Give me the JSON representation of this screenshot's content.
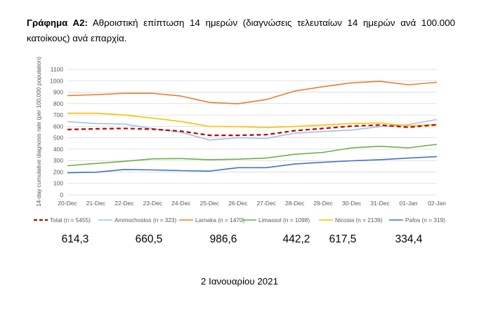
{
  "caption": {
    "label": "Γράφημα Α2:",
    "text": " Αθροιστική επίπτωση 14 ημερών (διαγνώσεις τελευταίων 14 ημερών ανά 100.000 κατοίκους) ανά επαρχία."
  },
  "chart_data": {
    "type": "line",
    "ylabel": "14-day cumulative diagnosis rate (per 100,000 population)",
    "xlabel": "",
    "ylim": [
      0,
      1100
    ],
    "yticks": [
      0,
      100,
      200,
      300,
      400,
      500,
      600,
      700,
      800,
      900,
      1000,
      1100
    ],
    "categories": [
      "20-Dec",
      "21-Dec",
      "22-Dec",
      "23-Dec",
      "24-Dec",
      "25-Dec",
      "26-Dec",
      "27-Dec",
      "28-Dec",
      "29-Dec",
      "30-Dec",
      "31-Dec",
      "01-Jan",
      "02-Jan"
    ],
    "grid": true,
    "legend_position": "bottom",
    "series": [
      {
        "name": "Total (n = 5455)",
        "color": "#c00000",
        "dashed": true,
        "values": [
          572,
          578,
          582,
          575,
          558,
          522,
          522,
          527,
          562,
          582,
          602,
          612,
          592,
          614.3
        ]
      },
      {
        "name": "Ammochostos (n = 323)",
        "color": "#9dc3e6",
        "dashed": false,
        "values": [
          642,
          625,
          620,
          580,
          548,
          480,
          500,
          495,
          540,
          555,
          568,
          598,
          615,
          660.5
        ]
      },
      {
        "name": "Larnaka (n = 1470)",
        "color": "#ed7d31",
        "dashed": false,
        "values": [
          870,
          878,
          890,
          890,
          866,
          810,
          798,
          835,
          910,
          948,
          982,
          995,
          965,
          986.6
        ]
      },
      {
        "name": "Limassol (n = 1098)",
        "color": "#70ad47",
        "dashed": false,
        "values": [
          255,
          275,
          293,
          315,
          318,
          308,
          312,
          322,
          355,
          372,
          412,
          425,
          412,
          442.2
        ]
      },
      {
        "name": "Nicosia (n = 2139)",
        "color": "#ffc000",
        "dashed": false,
        "values": [
          715,
          715,
          700,
          672,
          643,
          600,
          598,
          590,
          600,
          612,
          625,
          630,
          605,
          617.5
        ]
      },
      {
        "name": "Pafos (n = 319)",
        "color": "#4472c4",
        "dashed": false,
        "values": [
          193,
          198,
          222,
          218,
          212,
          208,
          238,
          238,
          270,
          285,
          298,
          308,
          322,
          334.4
        ]
      }
    ]
  },
  "values_row": [
    "614,3",
    "660,5",
    "986,6",
    "442,2",
    "617,5",
    "334,4"
  ],
  "date_footer": "2 Ιανουαρίου 2021"
}
